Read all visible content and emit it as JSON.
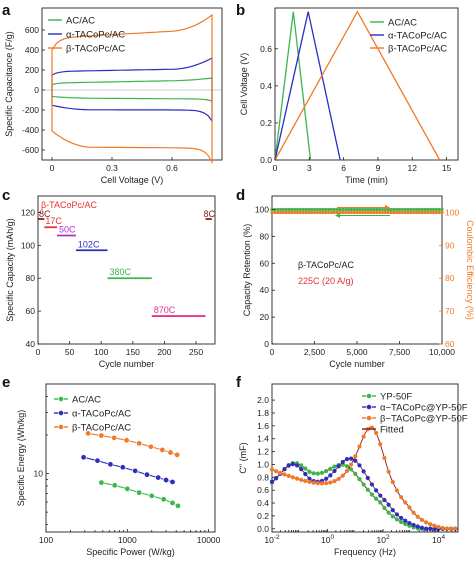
{
  "colors": {
    "green": "#3cb54a",
    "blue": "#2b2fbf",
    "orange": "#f07a2a",
    "red": "#e8322d",
    "magenta": "#b030c8",
    "pink": "#e8348c",
    "brown": "#8b1a1a",
    "olive": "#5aa02a"
  },
  "panels": [
    {
      "letter": "a"
    },
    {
      "letter": "b"
    },
    {
      "letter": "c"
    },
    {
      "letter": "d"
    },
    {
      "letter": "e"
    },
    {
      "letter": "f"
    }
  ],
  "chart_data": [
    {
      "panel": "a",
      "type": "line",
      "xlabel": "Cell Voltage (V)",
      "ylabel": "Specific Capacitance (F/g)",
      "xlim": [
        -0.05,
        0.85
      ],
      "ylim": [
        -700,
        820
      ],
      "xticks": [
        0,
        0.3,
        0.6
      ],
      "xtick_labels": [
        "0",
        "0.3",
        "0.6"
      ],
      "yticks": [
        -600,
        -400,
        -200,
        0,
        200,
        400,
        600
      ],
      "ytick_labels": [
        "-600",
        "-400",
        "-200",
        "0",
        "200",
        "400",
        "600"
      ],
      "legend_position": "top-left",
      "series": [
        {
          "name": "AC/AC",
          "color": "green",
          "top": [
            [
              0,
              55
            ],
            [
              0.05,
              70
            ],
            [
              0.4,
              90
            ],
            [
              0.8,
              110
            ]
          ],
          "bottom": [
            [
              0,
              -55
            ],
            [
              0.3,
              -70
            ],
            [
              0.7,
              -90
            ],
            [
              0.8,
              -110
            ]
          ]
        },
        {
          "name": "α-TACoPc/AC",
          "color": "blue",
          "top": [
            [
              0,
              150
            ],
            [
              0.05,
              185
            ],
            [
              0.4,
              205
            ],
            [
              0.8,
              310
            ]
          ],
          "bottom": [
            [
              0,
              -150
            ],
            [
              0.3,
              -195
            ],
            [
              0.7,
              -200
            ],
            [
              0.8,
              -310
            ]
          ]
        },
        {
          "name": "β-TACoPc/AC",
          "color": "orange",
          "top": [
            [
              0,
              400
            ],
            [
              0.06,
              520
            ],
            [
              0.4,
              580
            ],
            [
              0.8,
              720
            ]
          ],
          "bottom": [
            [
              0,
              -400
            ],
            [
              0.3,
              -560
            ],
            [
              0.7,
              -580
            ],
            [
              0.8,
              -720
            ]
          ]
        }
      ]
    },
    {
      "panel": "b",
      "type": "line",
      "xlabel": "Time (min)",
      "ylabel": "Cell Voltage (V)",
      "xlim": [
        0,
        16
      ],
      "ylim": [
        0,
        0.82
      ],
      "xticks": [
        0,
        3,
        6,
        9,
        12,
        15
      ],
      "xtick_labels": [
        "0",
        "3",
        "6",
        "9",
        "12",
        "15"
      ],
      "yticks": [
        0,
        0.2,
        0.4,
        0.6
      ],
      "ytick_labels": [
        "0.0",
        "0.2",
        "0.4",
        "0.6"
      ],
      "legend_position": "top-right",
      "series": [
        {
          "name": "AC/AC",
          "color": "green",
          "x": [
            0,
            1.6,
            3.1
          ],
          "y": [
            0,
            0.8,
            0
          ]
        },
        {
          "name": "α-TACoPc/AC",
          "color": "blue",
          "x": [
            0,
            2.9,
            5.7
          ],
          "y": [
            0,
            0.8,
            0
          ]
        },
        {
          "name": "β-TACoPc/AC",
          "color": "orange",
          "x": [
            0,
            7.2,
            14.4
          ],
          "y": [
            0,
            0.8,
            0
          ]
        }
      ]
    },
    {
      "panel": "c",
      "type": "scatter",
      "xlabel": "Cycle number",
      "ylabel": "Specific Capacity (mAh/g)",
      "xlim": [
        0,
        280
      ],
      "ylim": [
        40,
        130
      ],
      "xticks": [
        0,
        50,
        100,
        150,
        200,
        250
      ],
      "xtick_labels": [
        "0",
        "50",
        "100",
        "150",
        "200",
        "250"
      ],
      "yticks": [
        40,
        60,
        80,
        100,
        120
      ],
      "ytick_labels": [
        "40",
        "60",
        "80",
        "100",
        "120"
      ],
      "title_label": "β-TACoPc/AC",
      "segments": [
        {
          "label": "8C",
          "color": "brown",
          "x0": 0,
          "x1": 10,
          "y": 116
        },
        {
          "label": "17C",
          "color": "red",
          "x0": 10,
          "x1": 30,
          "y": 111
        },
        {
          "label": "50C",
          "color": "magenta",
          "x0": 30,
          "x1": 60,
          "y": 106
        },
        {
          "label": "102C",
          "color": "blue",
          "x0": 60,
          "x1": 110,
          "y": 97
        },
        {
          "label": "380C",
          "color": "green",
          "x0": 110,
          "x1": 180,
          "y": 80
        },
        {
          "label": "870C",
          "color": "pink",
          "x0": 180,
          "x1": 265,
          "y": 57
        },
        {
          "label": "8C",
          "color": "brown",
          "x0": 265,
          "x1": 275,
          "y": 116
        }
      ]
    },
    {
      "panel": "d",
      "type": "scatter",
      "xlabel": "Cycle number",
      "ylabel": "Capacity Retention (%)",
      "ylabel_right": "Coulombic Efficiency (%)",
      "xlim": [
        0,
        10000
      ],
      "ylim": [
        0,
        110
      ],
      "ylim_right": [
        60,
        105
      ],
      "xticks": [
        0,
        2500,
        5000,
        7500,
        10000
      ],
      "xtick_labels": [
        "0",
        "2,500",
        "5,000",
        "7,500",
        "10,000"
      ],
      "yticks": [
        0,
        20,
        40,
        60,
        80,
        100
      ],
      "ytick_labels": [
        "0",
        "20",
        "40",
        "60",
        "80",
        "100"
      ],
      "yticks_right": [
        60,
        70,
        80,
        90,
        100
      ],
      "ytick_labels_right": [
        "60",
        "70",
        "80",
        "90",
        "100"
      ],
      "annotation_1": "β-TACoPc/AC",
      "annotation_2": "225C (20 A/g)",
      "series": [
        {
          "color": "green",
          "axis": "left",
          "y": 100
        },
        {
          "color": "orange",
          "axis": "right",
          "y": 100
        }
      ]
    },
    {
      "panel": "e",
      "type": "line",
      "xlabel": "Specific Power (W/kg)",
      "ylabel": "Specific Energy (Wh/kg)",
      "xscale": "log",
      "yscale": "log",
      "xlim": [
        100,
        12000
      ],
      "ylim": [
        3.5,
        50
      ],
      "xticks": [
        100,
        1000,
        10000
      ],
      "xtick_labels": [
        "100",
        "1000",
        "10000"
      ],
      "yticks": [
        10
      ],
      "ytick_labels": [
        "10"
      ],
      "legend_position": "top-left",
      "series": [
        {
          "name": "AC/AC",
          "color": "green",
          "x": [
            480,
            700,
            1000,
            1400,
            2000,
            2800,
            3600,
            4200
          ],
          "y": [
            8.5,
            8.1,
            7.6,
            7.1,
            6.7,
            6.3,
            5.9,
            5.6
          ]
        },
        {
          "name": "α-TACoPc/AC",
          "color": "blue",
          "x": [
            290,
            430,
            620,
            880,
            1250,
            1750,
            2400,
            3000,
            3600
          ],
          "y": [
            13.4,
            12.6,
            11.8,
            11.2,
            10.5,
            9.8,
            9.3,
            8.9,
            8.6
          ]
        },
        {
          "name": "β-TACoPc/AC",
          "color": "orange",
          "x": [
            330,
            480,
            690,
            980,
            1400,
            1950,
            2700,
            3400,
            4100
          ],
          "y": [
            20.6,
            19.8,
            19.0,
            18.2,
            17.2,
            16.2,
            15.3,
            14.6,
            14.0
          ]
        }
      ]
    },
    {
      "panel": "f",
      "type": "line",
      "xlabel": "Frequency (Hz)",
      "ylabel": "C\" (mF)",
      "xscale": "log",
      "xlim": [
        0.01,
        50000
      ],
      "ylim": [
        -0.05,
        2.25
      ],
      "xticks": [
        0.01,
        1,
        100,
        10000
      ],
      "xtick_labels": [
        "10-2",
        "100",
        "102",
        "104"
      ],
      "yticks": [
        0,
        0.2,
        0.4,
        0.6,
        0.8,
        1.0,
        1.2,
        1.4,
        1.6,
        1.8,
        2.0
      ],
      "ytick_labels": [
        "0.0",
        "0.2",
        "0.4",
        "0.6",
        "0.8",
        "1.0",
        "1.2",
        "1.4",
        "1.6",
        "1.8",
        "2.0"
      ],
      "legend_position": "top-right",
      "series": [
        {
          "name": "YP-50F",
          "color": "green",
          "peaks": [
            [
              0.06,
              0.72,
              0.9
            ],
            [
              4,
              0.85,
              1.1
            ]
          ],
          "base": 0.28
        },
        {
          "name": "α−TACoPc@YP-50F",
          "color": "blue",
          "peaks": [
            [
              0.06,
              0.7,
              0.8
            ],
            [
              7,
              1.0,
              1.0
            ]
          ],
          "base": 0.42
        },
        {
          "name": "β−TACoPc@YP-50F",
          "color": "orange",
          "peaks": [
            [
              40,
              1.45,
              0.75
            ]
          ],
          "base": 0.45
        },
        {
          "name": "Fitted",
          "color": "brown",
          "line_only": true
        }
      ]
    }
  ]
}
